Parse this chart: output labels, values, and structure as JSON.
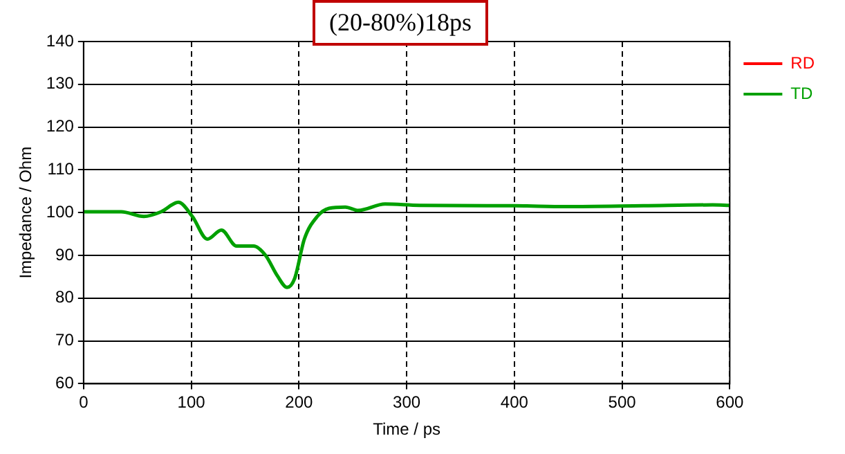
{
  "chart_data": {
    "type": "line",
    "title": "(20-80%)18ps",
    "xlabel": "Time / ps",
    "ylabel": "Impedance / Ohm",
    "x": [
      0,
      35,
      56,
      72,
      88,
      101,
      115,
      128,
      142,
      158,
      169,
      180,
      189,
      196,
      205,
      217,
      228,
      243,
      255,
      280,
      312,
      400,
      448,
      520,
      584,
      600
    ],
    "series": [
      {
        "name": "RD",
        "color": "#ff0000",
        "values": [
          null,
          null,
          null,
          null,
          null,
          null,
          null,
          null,
          null,
          null,
          null,
          null,
          null,
          null,
          null,
          null,
          null,
          null,
          null,
          null,
          null,
          null,
          null,
          null,
          null,
          null
        ]
      },
      {
        "name": "TD",
        "color": "#00a000",
        "values": [
          100.2,
          100.2,
          99.1,
          100.2,
          102.4,
          99.1,
          93.8,
          95.9,
          92.2,
          92.2,
          90.0,
          85.2,
          82.5,
          84.6,
          93.8,
          99.1,
          101.0,
          101.3,
          100.5,
          102.0,
          101.7,
          101.6,
          101.4,
          101.6,
          101.8,
          101.7
        ]
      }
    ],
    "xlim": [
      0,
      600
    ],
    "xticks": [
      0,
      100,
      200,
      300,
      400,
      500,
      600
    ],
    "ylim": [
      60,
      140
    ],
    "yticks": [
      60,
      70,
      80,
      90,
      100,
      110,
      120,
      130,
      140
    ],
    "grid": true,
    "legend": "top right",
    "line_style": "solid",
    "marker": "none"
  }
}
